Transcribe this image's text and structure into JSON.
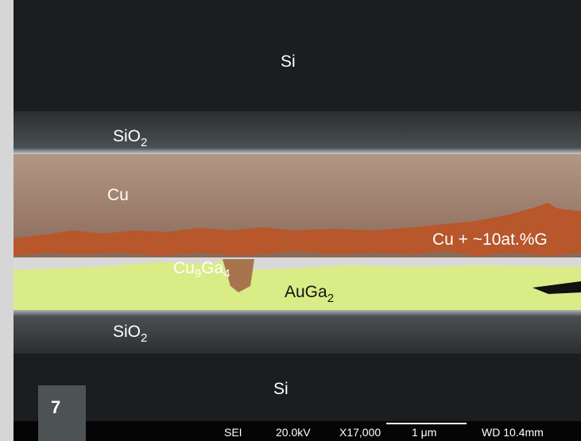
{
  "labels": {
    "si_top": "Si",
    "sio2_top": {
      "base": "SiO",
      "sub": "2"
    },
    "cu": "Cu",
    "cu_ga": "Cu + ~10at.%G",
    "cu9ga4": {
      "parts": [
        "Cu",
        "9",
        "Ga",
        "4"
      ]
    },
    "auga2": {
      "base": "AuGa",
      "sub": "2"
    },
    "sio2_bottom": {
      "base": "SiO",
      "sub": "2"
    },
    "si_bottom": "Si"
  },
  "figure_number": "7",
  "info_bar": {
    "mode": "SEI",
    "voltage": "20.0kV",
    "magnification": "X17,000",
    "scale": "1 μm",
    "working_distance": "WD 10.4mm"
  }
}
